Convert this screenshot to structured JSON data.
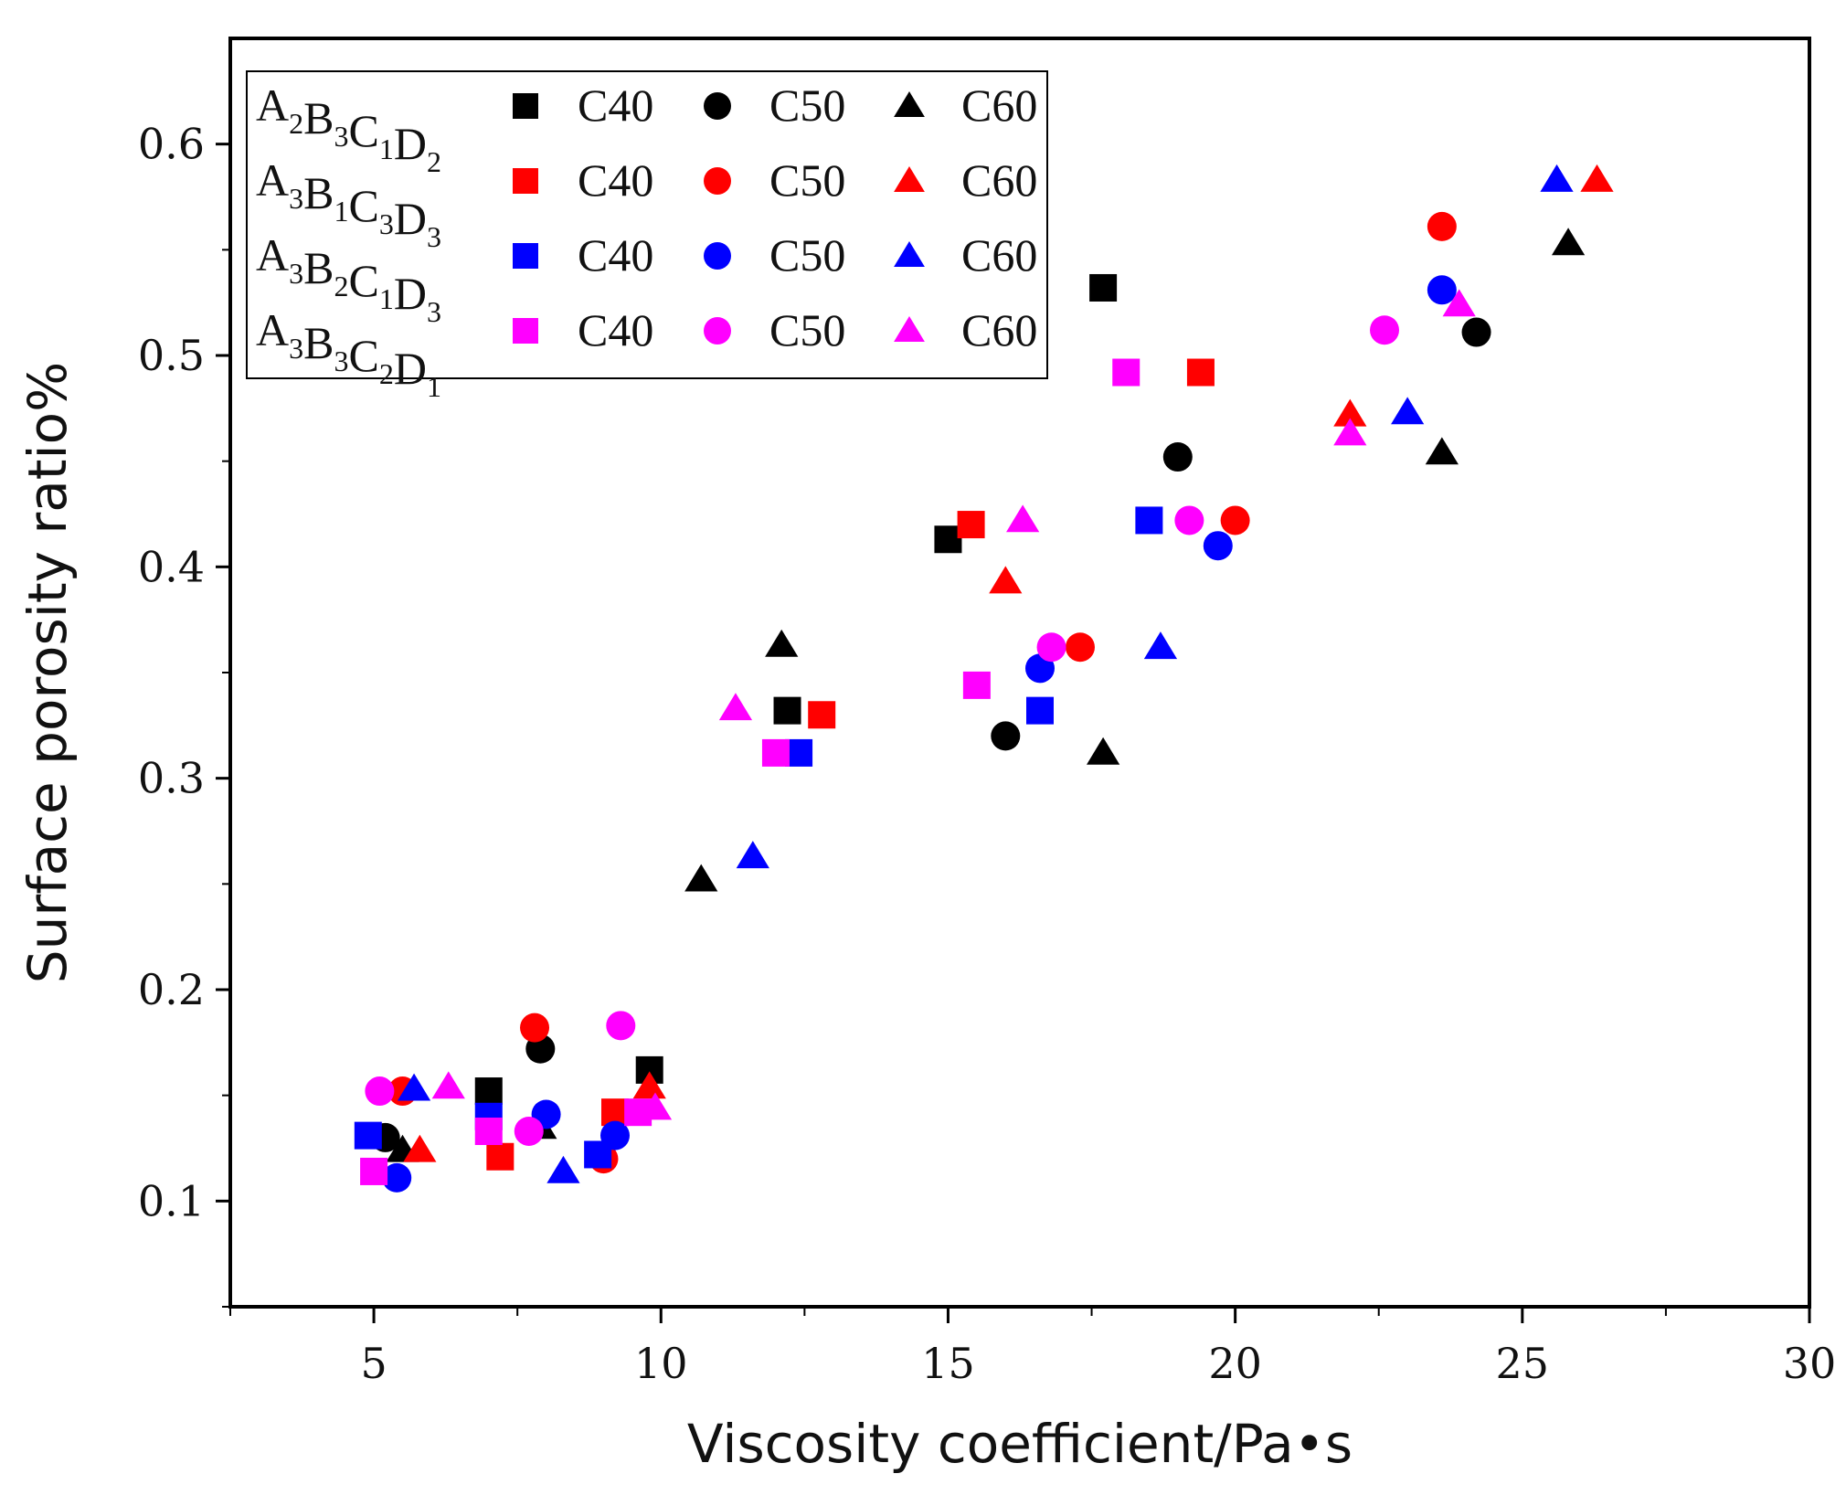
{
  "chart_data": {
    "type": "scatter",
    "title": "",
    "xlabel": "Viscosity coefficient/Pa•s",
    "ylabel": "Surface porosity ratio%",
    "xlim": [
      2.5,
      30
    ],
    "ylim": [
      0.05,
      0.65
    ],
    "x_ticks": [
      5,
      10,
      15,
      20,
      25,
      30
    ],
    "x_tick_labels": [
      "5",
      "10",
      "15",
      "20",
      "25",
      "30"
    ],
    "y_ticks": [
      0.1,
      0.2,
      0.3,
      0.4,
      0.5,
      0.6
    ],
    "y_tick_labels": [
      "0.1",
      "0.2",
      "0.3",
      "0.4",
      "0.5",
      "0.6"
    ],
    "grid": false,
    "legend_position": "top-left",
    "marker_labels": {
      "square": "C40",
      "circle": "C50",
      "triangle": "C60"
    },
    "groups": [
      {
        "name": "A2B3C1D2",
        "name_parts": [
          [
            "A",
            "2"
          ],
          [
            "B",
            "3"
          ],
          [
            "C",
            "1"
          ],
          [
            "D",
            "2"
          ]
        ],
        "color": "#000000",
        "series": [
          {
            "name": "C40",
            "marker": "square",
            "points": [
              [
                7.0,
                0.152
              ],
              [
                9.8,
                0.162
              ],
              [
                12.2,
                0.332
              ],
              [
                15.0,
                0.413
              ],
              [
                17.7,
                0.532
              ]
            ]
          },
          {
            "name": "C50",
            "marker": "circle",
            "points": [
              [
                5.2,
                0.13
              ],
              [
                7.9,
                0.172
              ],
              [
                16.0,
                0.32
              ],
              [
                19.0,
                0.452
              ],
              [
                24.2,
                0.511
              ]
            ]
          },
          {
            "name": "C60",
            "marker": "triangle",
            "points": [
              [
                5.5,
                0.124
              ],
              [
                7.9,
                0.135
              ],
              [
                10.7,
                0.252
              ],
              [
                12.1,
                0.363
              ],
              [
                17.7,
                0.312
              ],
              [
                23.6,
                0.454
              ],
              [
                25.8,
                0.553
              ]
            ]
          }
        ]
      },
      {
        "name": "A3B1C3D3",
        "name_parts": [
          [
            "A",
            "3"
          ],
          [
            "B",
            "1"
          ],
          [
            "C",
            "3"
          ],
          [
            "D",
            "3"
          ]
        ],
        "color": "#ff0000",
        "series": [
          {
            "name": "C40",
            "marker": "square",
            "points": [
              [
                7.2,
                0.121
              ],
              [
                9.2,
                0.142
              ],
              [
                12.8,
                0.33
              ],
              [
                15.4,
                0.42
              ],
              [
                19.4,
                0.492
              ]
            ]
          },
          {
            "name": "C50",
            "marker": "circle",
            "points": [
              [
                5.5,
                0.152
              ],
              [
                7.8,
                0.182
              ],
              [
                9.0,
                0.12
              ],
              [
                17.3,
                0.362
              ],
              [
                20.0,
                0.422
              ],
              [
                23.6,
                0.561
              ]
            ]
          },
          {
            "name": "C60",
            "marker": "triangle",
            "points": [
              [
                5.8,
                0.124
              ],
              [
                9.8,
                0.154
              ],
              [
                16.0,
                0.393
              ],
              [
                22.0,
                0.472
              ],
              [
                26.3,
                0.583
              ]
            ]
          }
        ]
      },
      {
        "name": "A3B2C1D3",
        "name_parts": [
          [
            "A",
            "3"
          ],
          [
            "B",
            "2"
          ],
          [
            "C",
            "1"
          ],
          [
            "D",
            "3"
          ]
        ],
        "color": "#0000ff",
        "series": [
          {
            "name": "C40",
            "marker": "square",
            "points": [
              [
                4.9,
                0.131
              ],
              [
                7.0,
                0.14
              ],
              [
                8.9,
                0.122
              ],
              [
                12.4,
                0.312
              ],
              [
                16.6,
                0.332
              ],
              [
                18.5,
                0.422
              ]
            ]
          },
          {
            "name": "C50",
            "marker": "circle",
            "points": [
              [
                5.4,
                0.111
              ],
              [
                8.0,
                0.141
              ],
              [
                9.2,
                0.131
              ],
              [
                16.6,
                0.352
              ],
              [
                19.7,
                0.41
              ],
              [
                23.6,
                0.531
              ]
            ]
          },
          {
            "name": "C60",
            "marker": "triangle",
            "points": [
              [
                5.7,
                0.153
              ],
              [
                8.3,
                0.114
              ],
              [
                11.6,
                0.263
              ],
              [
                18.7,
                0.362
              ],
              [
                23.0,
                0.473
              ],
              [
                25.6,
                0.583
              ]
            ]
          }
        ]
      },
      {
        "name": "A3B3C2D1",
        "name_parts": [
          [
            "A",
            "3"
          ],
          [
            "B",
            "3"
          ],
          [
            "C",
            "2"
          ],
          [
            "D",
            "1"
          ]
        ],
        "color": "#ff00ff",
        "series": [
          {
            "name": "C40",
            "marker": "square",
            "points": [
              [
                5.0,
                0.114
              ],
              [
                7.0,
                0.133
              ],
              [
                9.6,
                0.142
              ],
              [
                12.0,
                0.312
              ],
              [
                15.5,
                0.344
              ],
              [
                18.1,
                0.492
              ]
            ]
          },
          {
            "name": "C50",
            "marker": "circle",
            "points": [
              [
                5.1,
                0.152
              ],
              [
                7.7,
                0.133
              ],
              [
                9.3,
                0.183
              ],
              [
                16.8,
                0.362
              ],
              [
                19.2,
                0.422
              ],
              [
                22.6,
                0.512
              ]
            ]
          },
          {
            "name": "C60",
            "marker": "triangle",
            "points": [
              [
                6.3,
                0.154
              ],
              [
                9.9,
                0.144
              ],
              [
                11.3,
                0.333
              ],
              [
                16.3,
                0.422
              ],
              [
                22.0,
                0.463
              ],
              [
                23.9,
                0.524
              ]
            ]
          }
        ]
      }
    ]
  }
}
